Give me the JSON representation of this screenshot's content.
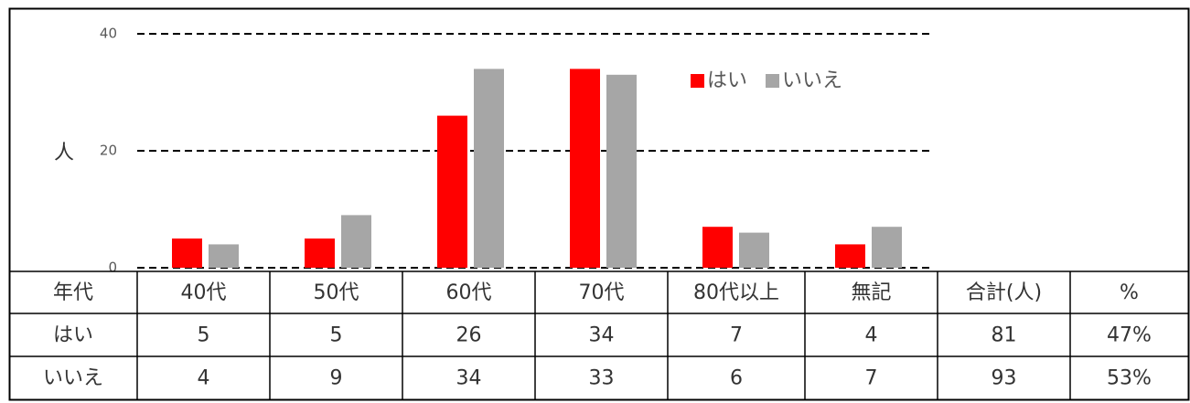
{
  "chart_data": {
    "type": "bar",
    "ylabel": "人",
    "categories": [
      "40代",
      "50代",
      "60代",
      "70代",
      "80代以上",
      "無記"
    ],
    "series": [
      {
        "name": "はい",
        "color": "#ff0000",
        "values": [
          5,
          5,
          26,
          34,
          7,
          4
        ]
      },
      {
        "name": "いいえ",
        "color": "#a6a6a6",
        "values": [
          4,
          9,
          34,
          33,
          6,
          7
        ]
      }
    ],
    "ylim": [
      0,
      40
    ],
    "yticks": [
      0,
      20,
      40
    ],
    "grid": true,
    "legend": "top-right",
    "table": {
      "row_header": "年代",
      "extra_columns": [
        "合計(人)",
        "%"
      ],
      "totals": [
        81,
        93
      ],
      "percents": {
        "values": [
          47,
          53
        ],
        "value_labels": [
          "47%",
          "53%"
        ]
      }
    }
  }
}
